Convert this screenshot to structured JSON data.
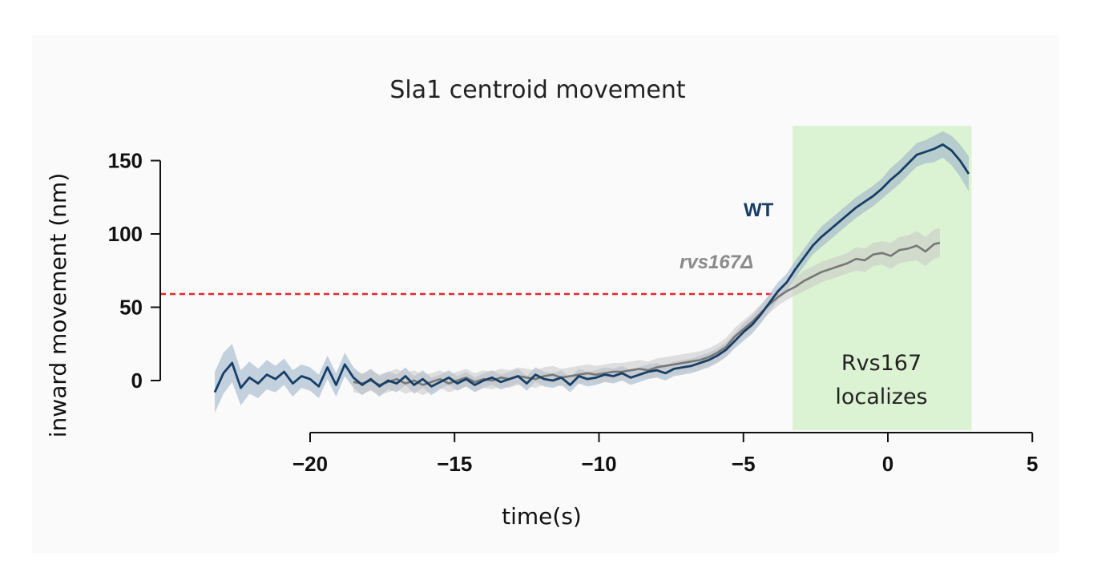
{
  "chart_data": {
    "type": "line",
    "title": "Sla1 centroid movement",
    "xlabel": "time(s)",
    "ylabel": "inward movement (nm)",
    "xlim": [
      -24,
      5
    ],
    "ylim": [
      -20,
      170
    ],
    "xticks": [
      -20,
      -15,
      -10,
      -5,
      0,
      5
    ],
    "xtick_labels": [
      "−20",
      "−15",
      "−10",
      "−5",
      "0",
      "5"
    ],
    "yticks": [
      0,
      50,
      100,
      150
    ],
    "ytick_labels": [
      "0",
      "50",
      "100",
      "150"
    ],
    "grid": false,
    "threshold_line": {
      "y": 59,
      "x_end": -3.8,
      "color": "#e8262b"
    },
    "highlight_region": {
      "x0": -3.3,
      "x1": 2.9,
      "color": "#dcf3d3",
      "label_line1": "Rvs167",
      "label_line2": "localizes"
    },
    "series": [
      {
        "name": "WT",
        "color": "#163e66",
        "band_color": "#9fb4c9",
        "x": [
          -23.3,
          -23.0,
          -22.7,
          -22.4,
          -22.1,
          -21.8,
          -21.5,
          -21.2,
          -20.9,
          -20.6,
          -20.3,
          -20.0,
          -19.7,
          -19.4,
          -19.1,
          -18.8,
          -18.5,
          -18.2,
          -17.9,
          -17.6,
          -17.3,
          -17.0,
          -16.7,
          -16.4,
          -16.1,
          -15.8,
          -15.5,
          -15.2,
          -14.9,
          -14.6,
          -14.3,
          -14.0,
          -13.7,
          -13.4,
          -13.1,
          -12.8,
          -12.5,
          -12.2,
          -11.9,
          -11.6,
          -11.3,
          -11.0,
          -10.7,
          -10.4,
          -10.1,
          -9.8,
          -9.5,
          -9.2,
          -8.9,
          -8.6,
          -8.3,
          -8.0,
          -7.7,
          -7.4,
          -7.1,
          -6.8,
          -6.5,
          -6.2,
          -5.9,
          -5.6,
          -5.3,
          -5.0,
          -4.7,
          -4.4,
          -4.1,
          -3.8,
          -3.5,
          -3.2,
          -2.9,
          -2.6,
          -2.3,
          -2.0,
          -1.7,
          -1.4,
          -1.1,
          -0.8,
          -0.5,
          -0.2,
          0.1,
          0.4,
          0.7,
          1.0,
          1.3,
          1.6,
          1.9,
          2.2,
          2.5,
          2.8
        ],
        "y": [
          -8,
          5,
          12,
          -5,
          2,
          -2,
          4,
          1,
          6,
          -2,
          3,
          1,
          -4,
          9,
          -3,
          11,
          2,
          -3,
          1,
          -4,
          0,
          -2,
          3,
          -3,
          1,
          -4,
          -1,
          2,
          -2,
          1,
          -3,
          0,
          2,
          -1,
          1,
          3,
          -2,
          4,
          1,
          0,
          2,
          -3,
          3,
          1,
          2,
          4,
          3,
          5,
          2,
          4,
          6,
          7,
          5,
          8,
          9,
          10,
          12,
          14,
          17,
          21,
          27,
          33,
          38,
          45,
          53,
          61,
          67,
          76,
          84,
          92,
          98,
          103,
          108,
          113,
          118,
          122,
          126,
          131,
          137,
          142,
          148,
          154,
          156,
          158,
          161,
          157,
          150,
          141
        ],
        "band": [
          14,
          14,
          13,
          12,
          11,
          10,
          10,
          9,
          9,
          9,
          8,
          8,
          8,
          8,
          8,
          8,
          7,
          7,
          7,
          7,
          6,
          6,
          6,
          6,
          6,
          6,
          5,
          5,
          5,
          5,
          5,
          5,
          5,
          5,
          5,
          5,
          5,
          5,
          5,
          5,
          5,
          5,
          5,
          5,
          5,
          5,
          5,
          5,
          5,
          5,
          5,
          5,
          5,
          5,
          5,
          5,
          5,
          5,
          5,
          5,
          5,
          6,
          6,
          6,
          6,
          6,
          6,
          6,
          6,
          6,
          7,
          7,
          7,
          7,
          7,
          7,
          7,
          7,
          8,
          8,
          8,
          8,
          8,
          9,
          9,
          10,
          11,
          12
        ]
      },
      {
        "name": "rvs167Δ",
        "color": "#777777",
        "band_color": "#c6c6c6",
        "x": [
          -18.5,
          -18.2,
          -17.9,
          -17.6,
          -17.3,
          -17.0,
          -16.7,
          -16.4,
          -16.1,
          -15.8,
          -15.5,
          -15.2,
          -14.9,
          -14.6,
          -14.3,
          -14.0,
          -13.7,
          -13.4,
          -13.1,
          -12.8,
          -12.5,
          -12.2,
          -11.9,
          -11.6,
          -11.3,
          -11.0,
          -10.7,
          -10.4,
          -10.1,
          -9.8,
          -9.5,
          -9.2,
          -8.9,
          -8.6,
          -8.3,
          -8.0,
          -7.7,
          -7.4,
          -7.1,
          -6.8,
          -6.5,
          -6.2,
          -5.9,
          -5.6,
          -5.3,
          -5.0,
          -4.7,
          -4.4,
          -4.1,
          -3.8,
          -3.5,
          -3.2,
          -2.9,
          -2.6,
          -2.3,
          -2.0,
          -1.7,
          -1.4,
          -1.1,
          -0.8,
          -0.5,
          -0.2,
          0.1,
          0.4,
          0.7,
          1.0,
          1.3,
          1.6,
          1.8
        ],
        "y": [
          -1,
          -2,
          0,
          -3,
          -1,
          1,
          -2,
          0,
          -3,
          -1,
          1,
          -2,
          0,
          2,
          -1,
          1,
          0,
          2,
          1,
          3,
          2,
          1,
          3,
          4,
          2,
          3,
          4,
          5,
          4,
          5,
          6,
          6,
          7,
          8,
          7,
          9,
          10,
          11,
          12,
          13,
          14,
          16,
          19,
          23,
          30,
          35,
          40,
          46,
          52,
          57,
          61,
          64,
          68,
          71,
          74,
          76,
          78,
          80,
          83,
          82,
          86,
          87,
          85,
          89,
          90,
          92,
          88,
          93,
          94
        ],
        "band": [
          7,
          7,
          7,
          7,
          7,
          7,
          7,
          7,
          7,
          6,
          6,
          6,
          6,
          6,
          6,
          6,
          6,
          6,
          6,
          6,
          6,
          6,
          6,
          6,
          6,
          6,
          6,
          6,
          6,
          6,
          6,
          6,
          6,
          6,
          6,
          6,
          6,
          6,
          6,
          6,
          6,
          6,
          6,
          6,
          6,
          6,
          6,
          6,
          6,
          6,
          6,
          6,
          7,
          7,
          7,
          7,
          7,
          7,
          8,
          8,
          8,
          8,
          9,
          9,
          9,
          10,
          10,
          10,
          10
        ]
      }
    ],
    "legend": [
      {
        "label": "WT",
        "color": "#163e66"
      },
      {
        "label": "rvs167Δ",
        "color": "#8a8a8a"
      }
    ]
  }
}
